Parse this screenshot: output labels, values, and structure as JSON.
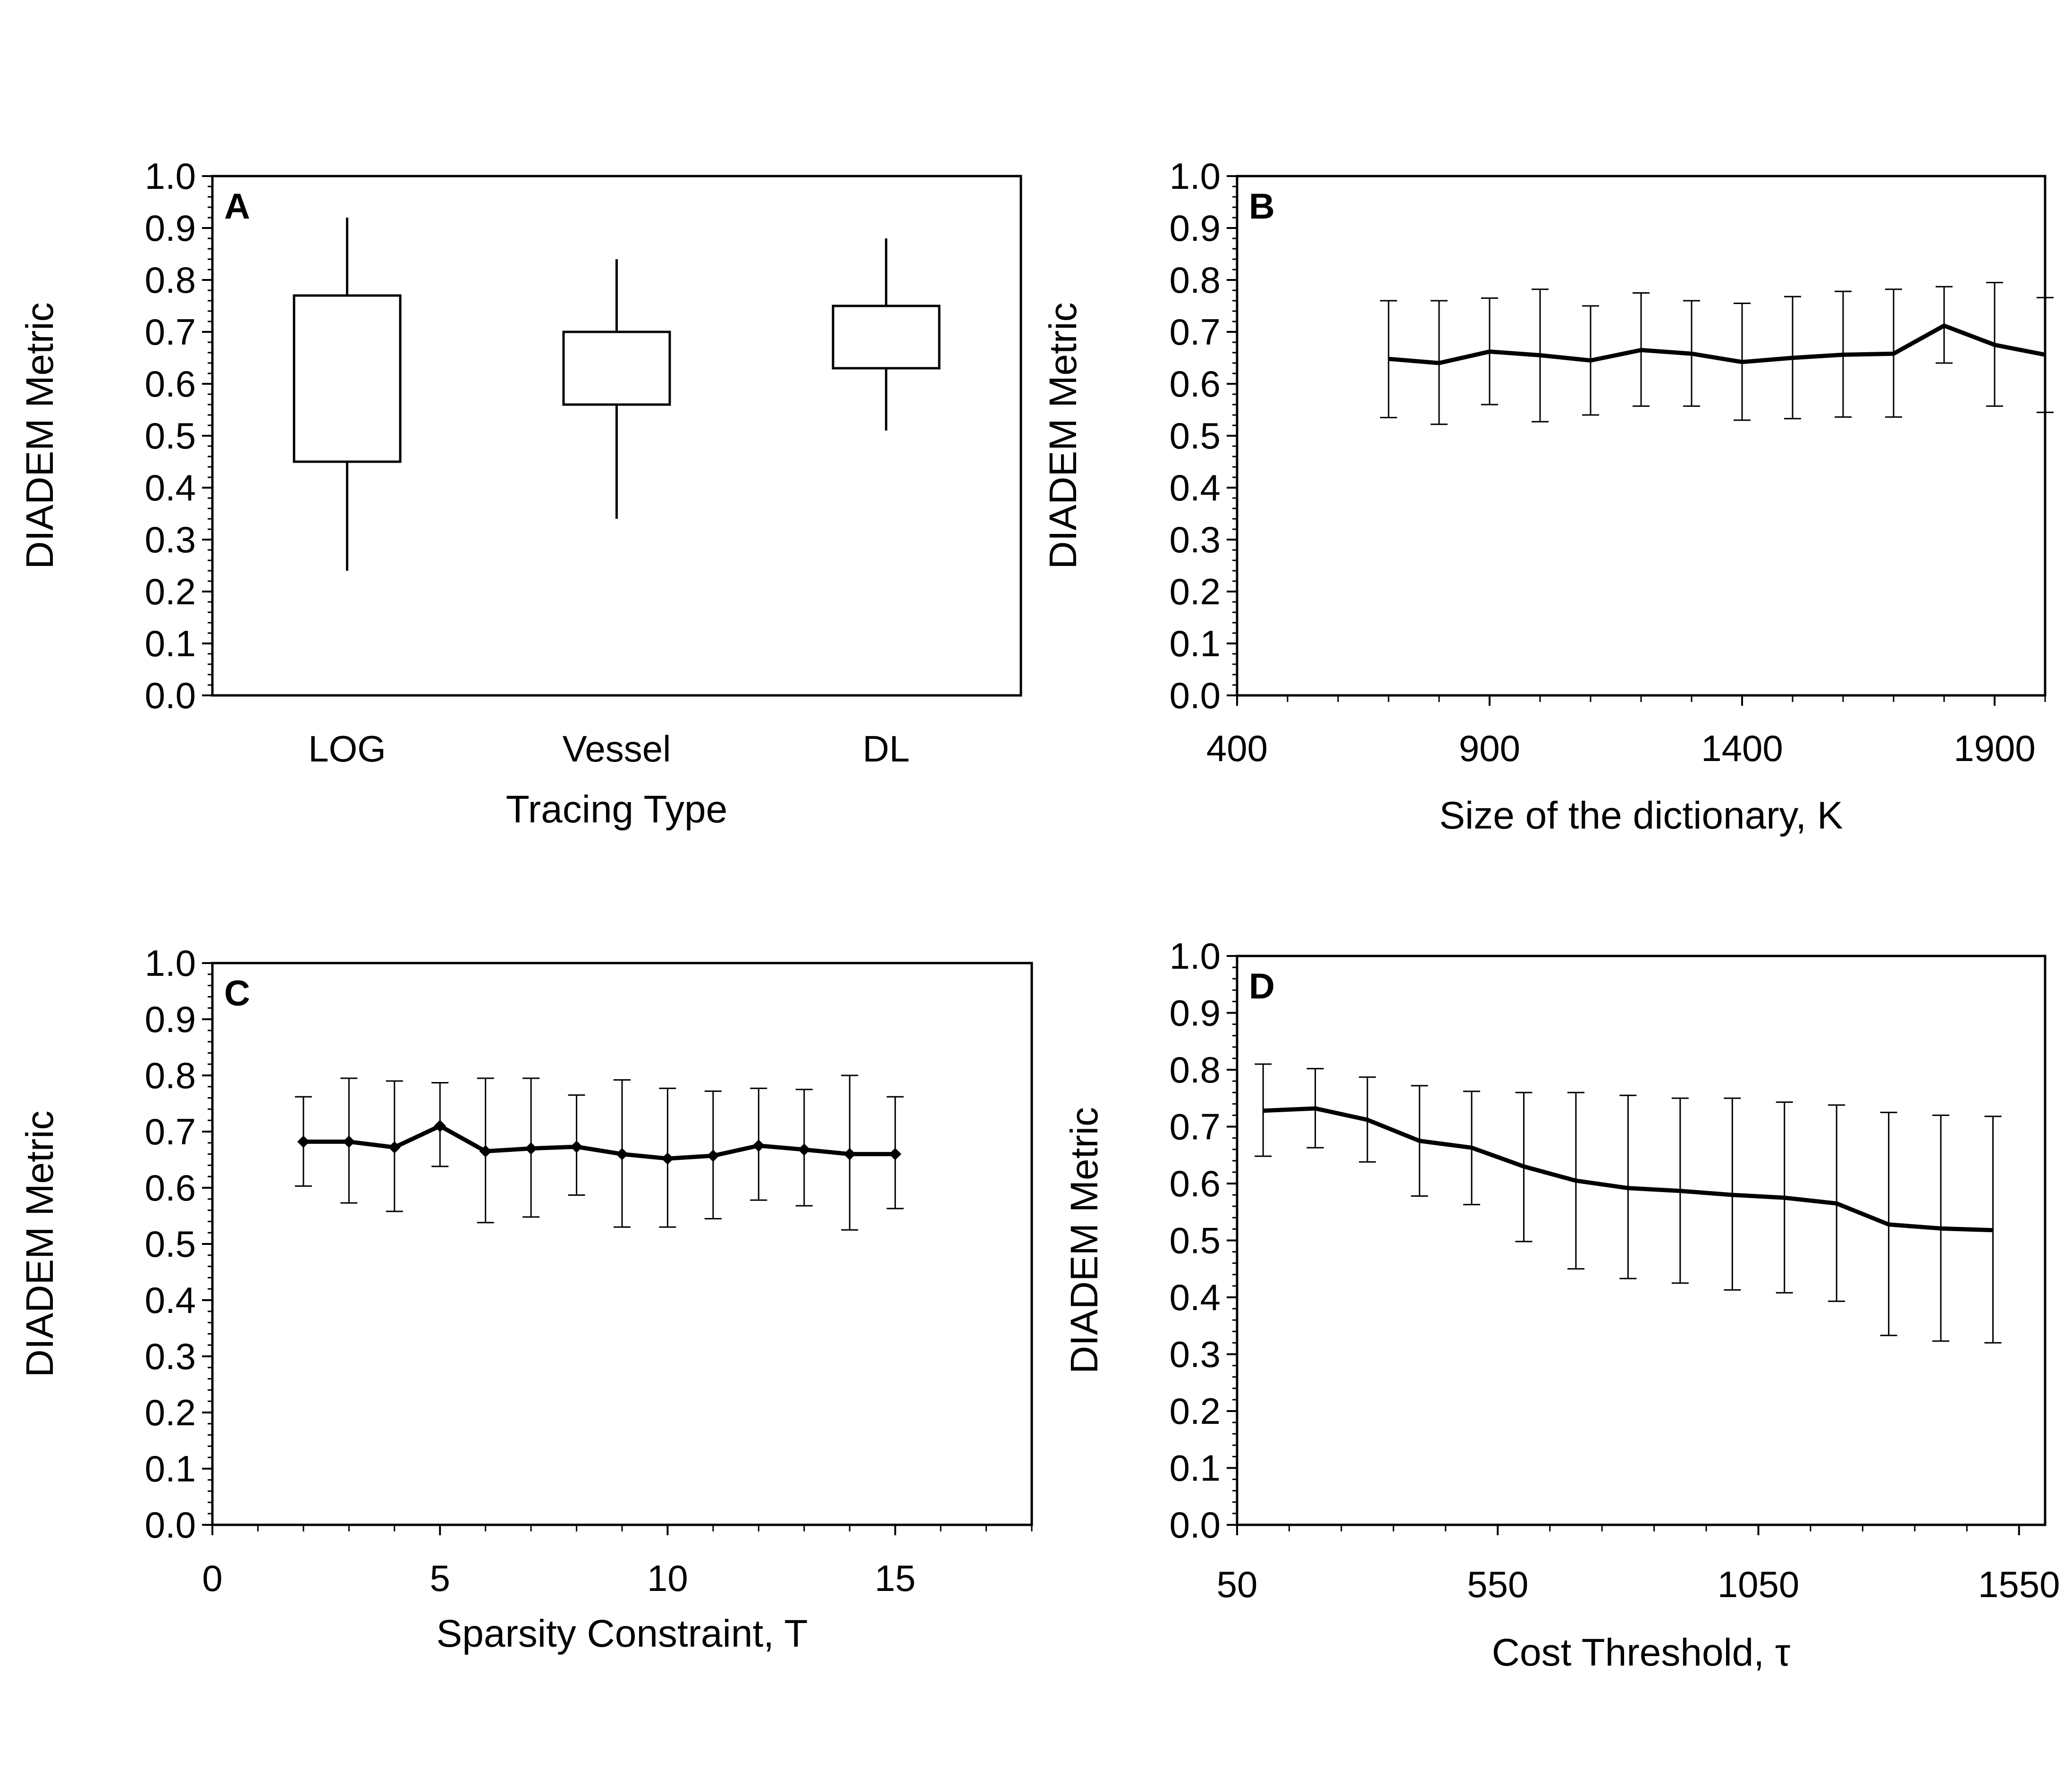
{
  "chart_data": [
    {
      "panel": "A",
      "type": "box",
      "xlabel": "Tracing Type",
      "ylabel": "DIADEM Metric",
      "ylim": [
        0,
        1
      ],
      "yticks": [
        "0.0",
        "0.1",
        "0.2",
        "0.3",
        "0.4",
        "0.5",
        "0.6",
        "0.7",
        "0.8",
        "0.9",
        "1.0"
      ],
      "categories": [
        "LOG",
        "Vessel",
        "DL"
      ],
      "boxes": [
        {
          "min": 0.24,
          "q1": 0.45,
          "q3": 0.77,
          "max": 0.92
        },
        {
          "min": 0.34,
          "q1": 0.56,
          "q3": 0.7,
          "max": 0.84
        },
        {
          "min": 0.51,
          "q1": 0.63,
          "q3": 0.75,
          "max": 0.88
        }
      ],
      "grid": false
    },
    {
      "panel": "B",
      "type": "line",
      "xlabel": "Size of the dictionary, K",
      "ylabel": "DIADEM Metric",
      "xlim": [
        400,
        2000
      ],
      "ylim": [
        0,
        1
      ],
      "xticks": [
        "400",
        "900",
        "1400",
        "1900"
      ],
      "yticks": [
        "0.0",
        "0.1",
        "0.2",
        "0.3",
        "0.4",
        "0.5",
        "0.6",
        "0.7",
        "0.8",
        "0.9",
        "1.0"
      ],
      "x": [
        700,
        800,
        900,
        1000,
        1100,
        1200,
        1300,
        1400,
        1500,
        1600,
        1700,
        1800,
        1900,
        2000
      ],
      "y": [
        0.648,
        0.64,
        0.662,
        0.655,
        0.645,
        0.665,
        0.658,
        0.642,
        0.65,
        0.656,
        0.658,
        0.712,
        0.675,
        0.656
      ],
      "err_low": [
        0.535,
        0.522,
        0.56,
        0.527,
        0.54,
        0.557,
        0.557,
        0.53,
        0.533,
        0.536,
        0.536,
        0.64,
        0.557,
        0.545
      ],
      "err_high": [
        0.76,
        0.76,
        0.765,
        0.782,
        0.75,
        0.775,
        0.76,
        0.755,
        0.768,
        0.778,
        0.782,
        0.787,
        0.795,
        0.766
      ],
      "grid": false
    },
    {
      "panel": "C",
      "type": "line",
      "xlabel": "Sparsity Constraint, T",
      "ylabel": "DIADEM Metric",
      "xlim": [
        0,
        18
      ],
      "ylim": [
        0,
        1
      ],
      "xticks": [
        "0",
        "5",
        "10",
        "15"
      ],
      "yticks": [
        "0.0",
        "0.1",
        "0.2",
        "0.3",
        "0.4",
        "0.5",
        "0.6",
        "0.7",
        "0.8",
        "0.9",
        "1.0"
      ],
      "x": [
        2,
        3,
        4,
        5,
        6,
        7,
        8,
        9,
        10,
        11,
        12,
        13,
        14,
        15
      ],
      "y": [
        0.682,
        0.682,
        0.672,
        0.71,
        0.665,
        0.67,
        0.673,
        0.66,
        0.652,
        0.657,
        0.675,
        0.668,
        0.66,
        0.66
      ],
      "err_low": [
        0.603,
        0.573,
        0.558,
        0.638,
        0.538,
        0.548,
        0.587,
        0.53,
        0.53,
        0.545,
        0.578,
        0.568,
        0.525,
        0.563
      ],
      "err_high": [
        0.762,
        0.795,
        0.79,
        0.787,
        0.795,
        0.795,
        0.765,
        0.792,
        0.777,
        0.772,
        0.777,
        0.775,
        0.8,
        0.762
      ],
      "markers": true,
      "grid": false
    },
    {
      "panel": "D",
      "type": "line",
      "xlabel": "Cost Threshold, τ",
      "ylabel": "DIADEM Metric",
      "xlim": [
        50,
        1600
      ],
      "ylim": [
        0,
        1
      ],
      "xticks": [
        "50",
        "550",
        "1050",
        "1550"
      ],
      "yticks": [
        "0.0",
        "0.1",
        "0.2",
        "0.3",
        "0.4",
        "0.5",
        "0.6",
        "0.7",
        "0.8",
        "0.9",
        "1.0"
      ],
      "x": [
        100,
        200,
        300,
        400,
        500,
        600,
        700,
        800,
        900,
        1000,
        1100,
        1200,
        1300,
        1400,
        1500
      ],
      "y": [
        0.728,
        0.732,
        0.712,
        0.675,
        0.663,
        0.63,
        0.605,
        0.592,
        0.587,
        0.58,
        0.575,
        0.565,
        0.528,
        0.521,
        0.518
      ],
      "err_low": [
        0.648,
        0.663,
        0.638,
        0.578,
        0.563,
        0.498,
        0.45,
        0.433,
        0.425,
        0.413,
        0.408,
        0.393,
        0.333,
        0.323,
        0.32
      ],
      "err_high": [
        0.81,
        0.802,
        0.787,
        0.772,
        0.762,
        0.76,
        0.76,
        0.755,
        0.75,
        0.75,
        0.743,
        0.738,
        0.725,
        0.72,
        0.718
      ],
      "grid": false
    }
  ]
}
